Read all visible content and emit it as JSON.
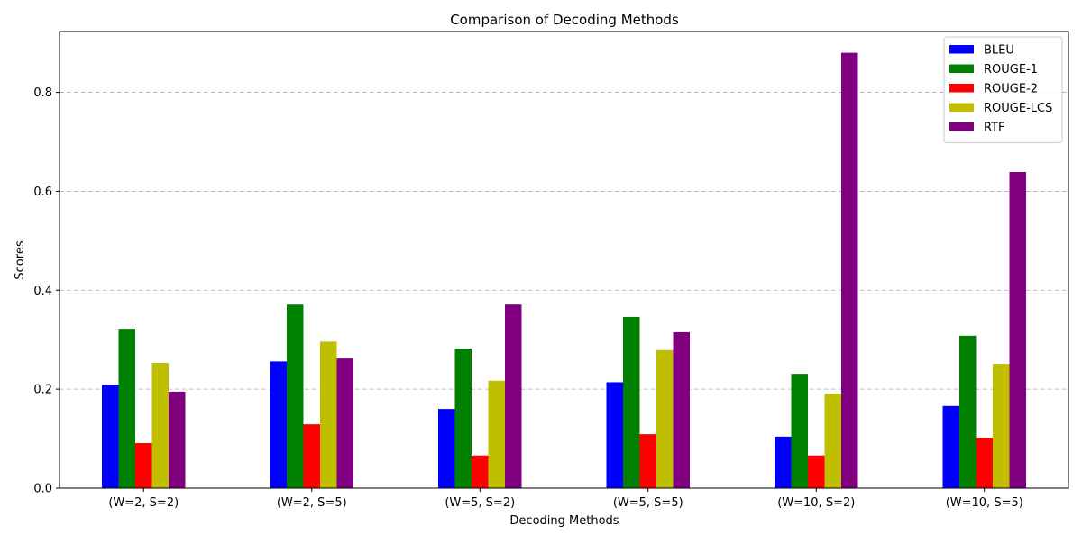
{
  "chart_data": {
    "type": "bar",
    "title": "Comparison of Decoding Methods",
    "xlabel": "Decoding Methods",
    "ylabel": "Scores",
    "categories": [
      "(W=2, S=2)",
      "(W=2, S=5)",
      "(W=5, S=2)",
      "(W=5, S=5)",
      "(W=10, S=2)",
      "(W=10, S=5)"
    ],
    "series": [
      {
        "name": "BLEU",
        "color": "#0000ff",
        "values": [
          0.209,
          0.256,
          0.16,
          0.214,
          0.104,
          0.166
        ]
      },
      {
        "name": "ROUGE-1",
        "color": "#008000",
        "values": [
          0.322,
          0.371,
          0.282,
          0.346,
          0.231,
          0.308
        ]
      },
      {
        "name": "ROUGE-2",
        "color": "#ff0000",
        "values": [
          0.091,
          0.129,
          0.066,
          0.109,
          0.066,
          0.102
        ]
      },
      {
        "name": "ROUGE-LCS",
        "color": "#bfbf00",
        "values": [
          0.253,
          0.296,
          0.217,
          0.279,
          0.191,
          0.251
        ]
      },
      {
        "name": "RTF",
        "color": "#800080",
        "values": [
          0.195,
          0.262,
          0.371,
          0.315,
          0.88,
          0.639
        ]
      }
    ],
    "ylim": [
      0,
      0.923
    ],
    "yticks": [
      0.0,
      0.2,
      0.4,
      0.6,
      0.8
    ],
    "ytick_labels": [
      "0.0",
      "0.2",
      "0.4",
      "0.6",
      "0.8"
    ],
    "grid": {
      "axis": "y",
      "style": "dashed"
    },
    "legend": {
      "placement": "top-right"
    }
  }
}
